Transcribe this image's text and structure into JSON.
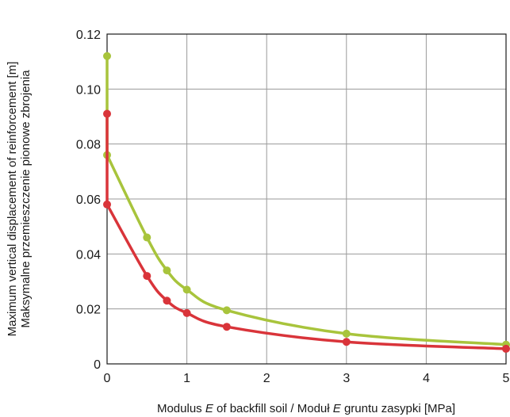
{
  "chart_data": {
    "type": "line",
    "title": "",
    "xlabel_parts": [
      "Modulus ",
      "E",
      " of backfill soil / Moduł ",
      "E",
      " gruntu zasypki [MPa]"
    ],
    "ylabel_lines": [
      "Maximum vertical displacement of reinforcement [m]",
      "Maksymalne przemieszczenie pionowe zbrojenia"
    ],
    "xlim": [
      0,
      5
    ],
    "ylim": [
      0,
      0.12
    ],
    "x_ticks": [
      "0",
      "1",
      "2",
      "3",
      "4",
      "5"
    ],
    "y_ticks": [
      "0",
      "0.02",
      "0.04",
      "0.06",
      "0.08",
      "0.10",
      "0.12"
    ],
    "grid": true,
    "legend": "none",
    "series": [
      {
        "color": "#a8c43c",
        "points": [
          [
            0.0,
            0.112
          ],
          [
            0.0,
            0.076
          ],
          [
            0.5,
            0.046
          ],
          [
            0.75,
            0.034
          ],
          [
            1.0,
            0.027
          ],
          [
            1.5,
            0.0195
          ],
          [
            3.0,
            0.011
          ],
          [
            5.0,
            0.007
          ]
        ]
      },
      {
        "color": "#d9343a",
        "points": [
          [
            0.0,
            0.091
          ],
          [
            0.0,
            0.058
          ],
          [
            0.5,
            0.032
          ],
          [
            0.75,
            0.023
          ],
          [
            1.0,
            0.0185
          ],
          [
            1.5,
            0.0135
          ],
          [
            3.0,
            0.008
          ],
          [
            5.0,
            0.0055
          ]
        ]
      }
    ]
  }
}
